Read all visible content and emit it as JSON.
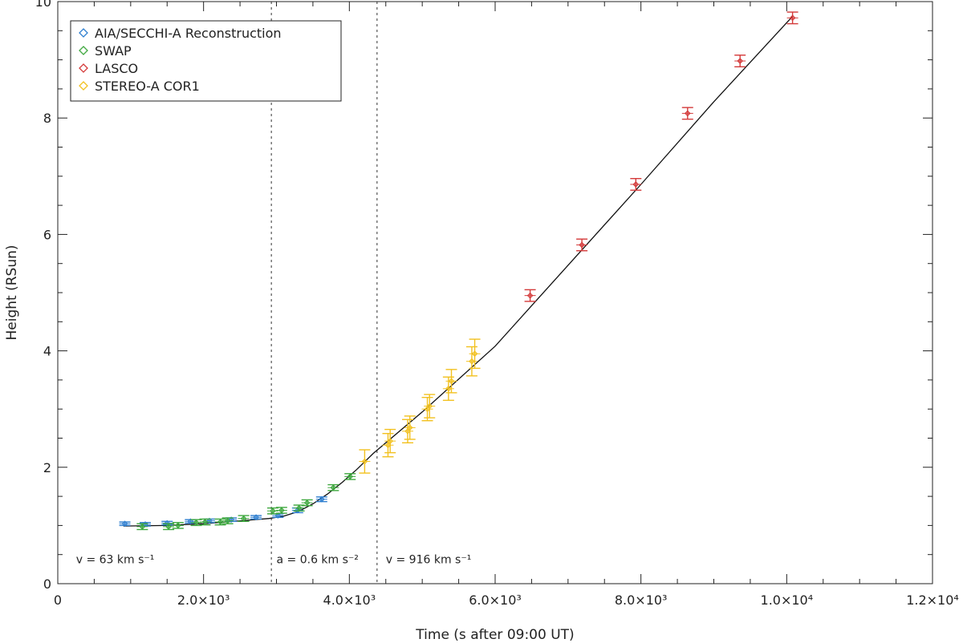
{
  "chart_data": {
    "type": "scatter",
    "xlabel": "Time (s after 09:00 UT)",
    "ylabel": "Height (RSun)",
    "xlim": [
      0,
      12000
    ],
    "ylim": [
      0,
      10
    ],
    "x_ticks": [
      {
        "value": 0,
        "label": "0"
      },
      {
        "value": 2000,
        "label": "2.0×10³"
      },
      {
        "value": 4000,
        "label": "4.0×10³"
      },
      {
        "value": 6000,
        "label": "6.0×10³"
      },
      {
        "value": 8000,
        "label": "8.0×10³"
      },
      {
        "value": 10000,
        "label": "1.0×10⁴"
      },
      {
        "value": 12000,
        "label": "1.2×10⁴"
      }
    ],
    "y_ticks": [
      {
        "value": 0,
        "label": "0"
      },
      {
        "value": 2,
        "label": "2"
      },
      {
        "value": 4,
        "label": "4"
      },
      {
        "value": 6,
        "label": "6"
      },
      {
        "value": 8,
        "label": "8"
      },
      {
        "value": 10,
        "label": "10"
      }
    ],
    "grid": false,
    "legend_position": "top-left",
    "series": [
      {
        "name": "AIA/SECCHI-A Reconstruction",
        "color": "#2f7fd0",
        "marker": "diamond",
        "points": [
          {
            "x": 920,
            "y": 1.03,
            "err": 0.03
          },
          {
            "x": 1200,
            "y": 1.02,
            "err": 0.03
          },
          {
            "x": 1500,
            "y": 1.04,
            "err": 0.03
          },
          {
            "x": 1820,
            "y": 1.07,
            "err": 0.03
          },
          {
            "x": 2080,
            "y": 1.08,
            "err": 0.03
          },
          {
            "x": 2380,
            "y": 1.1,
            "err": 0.03
          },
          {
            "x": 2720,
            "y": 1.14,
            "err": 0.03
          },
          {
            "x": 3020,
            "y": 1.17,
            "err": 0.03
          },
          {
            "x": 3290,
            "y": 1.26,
            "err": 0.04
          },
          {
            "x": 3620,
            "y": 1.45,
            "err": 0.04
          }
        ]
      },
      {
        "name": "SWAP",
        "color": "#3fa83f",
        "marker": "diamond",
        "points": [
          {
            "x": 1160,
            "y": 0.98,
            "err": 0.05
          },
          {
            "x": 1520,
            "y": 0.98,
            "err": 0.05
          },
          {
            "x": 1650,
            "y": 1.0,
            "err": 0.05
          },
          {
            "x": 1900,
            "y": 1.05,
            "err": 0.05
          },
          {
            "x": 2020,
            "y": 1.06,
            "err": 0.05
          },
          {
            "x": 2230,
            "y": 1.06,
            "err": 0.05
          },
          {
            "x": 2330,
            "y": 1.08,
            "err": 0.05
          },
          {
            "x": 2550,
            "y": 1.12,
            "err": 0.05
          },
          {
            "x": 2950,
            "y": 1.25,
            "err": 0.05
          },
          {
            "x": 3070,
            "y": 1.26,
            "err": 0.05
          },
          {
            "x": 3310,
            "y": 1.3,
            "err": 0.05
          },
          {
            "x": 3420,
            "y": 1.39,
            "err": 0.05
          },
          {
            "x": 3780,
            "y": 1.65,
            "err": 0.05
          },
          {
            "x": 4010,
            "y": 1.84,
            "err": 0.05
          }
        ]
      },
      {
        "name": "LASCO",
        "color": "#d43a3a",
        "marker": "diamond",
        "points": [
          {
            "x": 6480,
            "y": 4.95,
            "err": 0.1
          },
          {
            "x": 7190,
            "y": 5.82,
            "err": 0.1
          },
          {
            "x": 7930,
            "y": 6.86,
            "err": 0.1
          },
          {
            "x": 8640,
            "y": 8.08,
            "err": 0.1
          },
          {
            "x": 9360,
            "y": 8.98,
            "err": 0.1
          },
          {
            "x": 10080,
            "y": 9.72,
            "err": 0.1
          }
        ]
      },
      {
        "name": "STEREO-A COR1",
        "color": "#f2c11f",
        "marker": "diamond",
        "points": [
          {
            "x": 4210,
            "y": 2.1,
            "err": 0.2
          },
          {
            "x": 4530,
            "y": 2.38,
            "err": 0.2
          },
          {
            "x": 4560,
            "y": 2.45,
            "err": 0.2
          },
          {
            "x": 4800,
            "y": 2.62,
            "err": 0.2
          },
          {
            "x": 4830,
            "y": 2.68,
            "err": 0.2
          },
          {
            "x": 5070,
            "y": 3.0,
            "err": 0.2
          },
          {
            "x": 5100,
            "y": 3.05,
            "err": 0.2
          },
          {
            "x": 5360,
            "y": 3.35,
            "err": 0.2
          },
          {
            "x": 5400,
            "y": 3.48,
            "err": 0.2
          },
          {
            "x": 5680,
            "y": 3.82,
            "err": 0.25
          },
          {
            "x": 5720,
            "y": 3.95,
            "err": 0.25
          }
        ]
      }
    ],
    "fit_curve": {
      "color": "#111111",
      "points": [
        [
          900,
          0.99
        ],
        [
          1500,
          1.0
        ],
        [
          2000,
          1.03
        ],
        [
          2500,
          1.08
        ],
        [
          2900,
          1.12
        ],
        [
          3100,
          1.16
        ],
        [
          3300,
          1.24
        ],
        [
          3500,
          1.37
        ],
        [
          3700,
          1.54
        ],
        [
          3900,
          1.74
        ],
        [
          4100,
          1.96
        ],
        [
          4330,
          2.24
        ],
        [
          5000,
          2.95
        ],
        [
          6000,
          4.08
        ],
        [
          7000,
          5.47
        ],
        [
          8000,
          6.86
        ],
        [
          9000,
          8.28
        ],
        [
          10090,
          9.76
        ]
      ]
    },
    "phase_boundaries": [
      2930,
      4380
    ],
    "annotations": [
      {
        "text": "v = 63 km s⁻¹",
        "x": 250,
        "y": 0.42
      },
      {
        "text": "a = 0.6 km s⁻²",
        "x": 3000,
        "y": 0.42
      },
      {
        "text": "v = 916 km s⁻¹",
        "x": 4500,
        "y": 0.42
      }
    ]
  }
}
